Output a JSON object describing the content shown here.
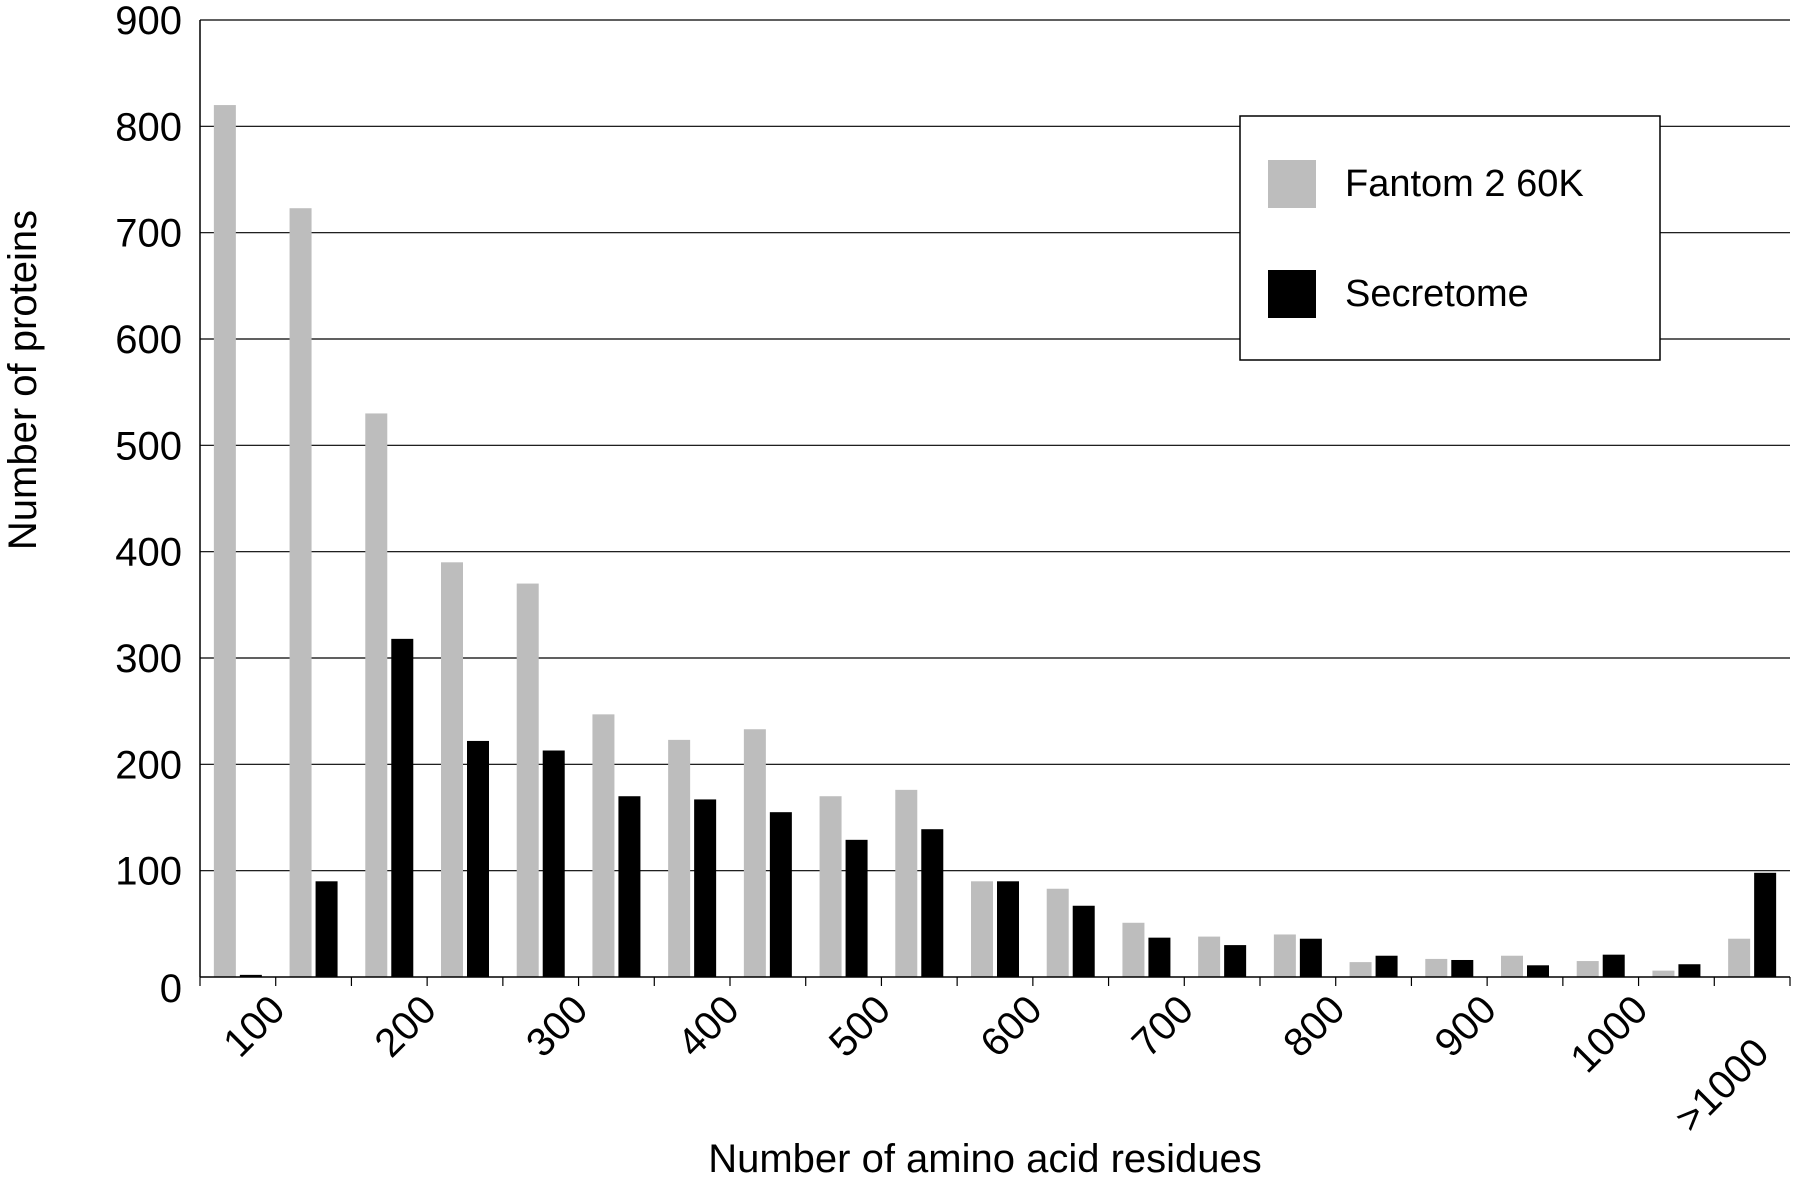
{
  "chart_data": {
    "type": "bar",
    "xlabel": "Number of amino acid residues",
    "ylabel": "Number of proteins",
    "ylim": [
      0,
      900
    ],
    "yticks": [
      "0",
      "100",
      "200",
      "300",
      "400",
      "500",
      "600",
      "700",
      "800",
      "900"
    ],
    "xtick_labels": [
      "100",
      "200",
      "300",
      "400",
      "500",
      "600",
      "700",
      "800",
      "900",
      "1000",
      ">1000"
    ],
    "grid": true,
    "legend_position": "top-right",
    "series": [
      {
        "name": "Fantom 2 60K",
        "color": "#bdbdbd",
        "values": [
          820,
          723,
          530,
          390,
          370,
          247,
          223,
          233,
          170,
          176,
          90,
          83,
          51,
          38,
          40,
          14,
          17,
          20,
          15,
          6,
          36
        ]
      },
      {
        "name": "Secretome",
        "color": "#000000",
        "values": [
          2,
          90,
          318,
          222,
          213,
          170,
          167,
          155,
          129,
          139,
          90,
          67,
          37,
          30,
          36,
          20,
          16,
          11,
          21,
          12,
          98
        ]
      }
    ]
  }
}
